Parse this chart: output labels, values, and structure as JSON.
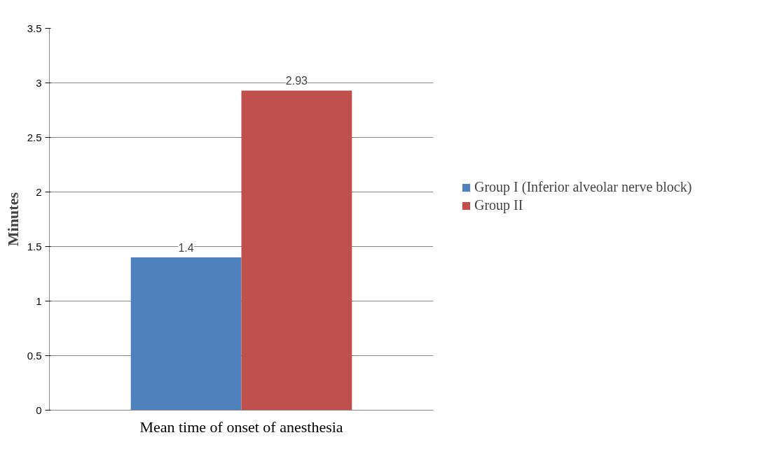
{
  "chart_data": {
    "type": "bar",
    "categories": [
      "Mean time of onset of anesthesia"
    ],
    "ylabel": "Minutes",
    "series": [
      {
        "name": "Group I (Inferior alveolar nerve block)",
        "color": "#4f81bd",
        "values": [
          1.4
        ]
      },
      {
        "name": "Group II",
        "color": "#c0504d",
        "values": [
          2.93
        ]
      }
    ],
    "ylim": [
      0,
      3.5
    ],
    "yticks": [
      0,
      0.5,
      1,
      1.5,
      2,
      2.5,
      3,
      3.5
    ],
    "grid": "y",
    "legend": "right",
    "data_labels": true
  }
}
